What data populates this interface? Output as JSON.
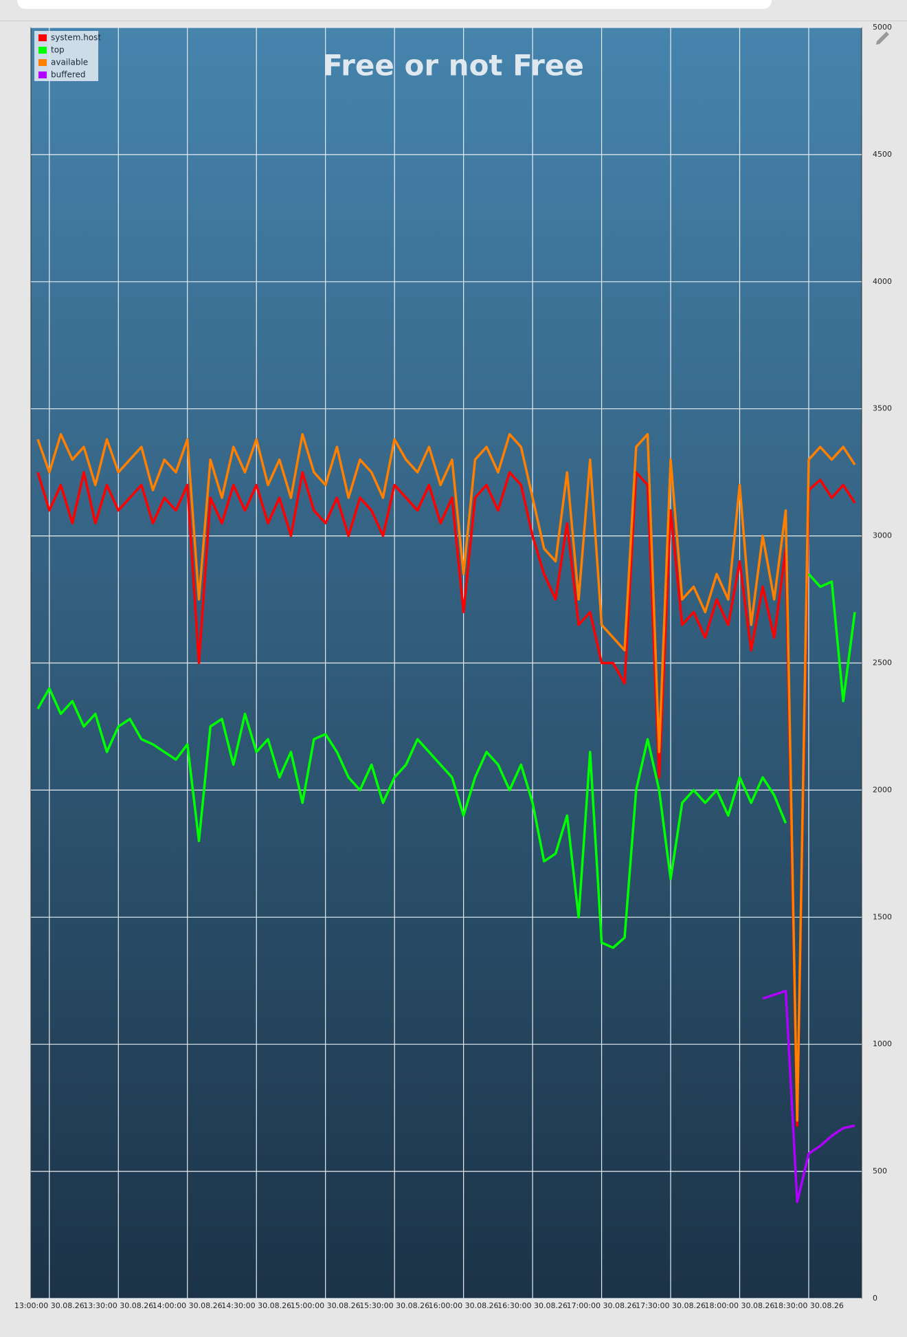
{
  "chart_data": {
    "type": "line",
    "title": "Free or not Free",
    "x": [
      775,
      780,
      785,
      790,
      795,
      800,
      805,
      810,
      815,
      820,
      825,
      830,
      835,
      840,
      845,
      850,
      855,
      860,
      865,
      870,
      875,
      880,
      885,
      890,
      895,
      900,
      905,
      910,
      915,
      920,
      925,
      930,
      935,
      940,
      945,
      950,
      955,
      960,
      965,
      970,
      975,
      980,
      985,
      990,
      995,
      1000,
      1005,
      1010,
      1015,
      1020,
      1025,
      1030,
      1035,
      1040,
      1045,
      1050,
      1055,
      1060,
      1065,
      1070,
      1075,
      1080,
      1085,
      1090,
      1095,
      1100,
      1105,
      1110,
      1115,
      1120,
      1125,
      1130
    ],
    "series": [
      {
        "name": "system.host",
        "color": "#ff0000",
        "values": [
          3250,
          3100,
          3200,
          3050,
          3250,
          3050,
          3200,
          3100,
          3150,
          3200,
          3050,
          3150,
          3100,
          3200,
          2500,
          3150,
          3050,
          3200,
          3100,
          3200,
          3050,
          3150,
          3000,
          3250,
          3100,
          3050,
          3150,
          3000,
          3150,
          3100,
          3000,
          3200,
          3150,
          3100,
          3200,
          3050,
          3150,
          2700,
          3150,
          3200,
          3100,
          3250,
          3200,
          3000,
          2850,
          2750,
          3050,
          2650,
          2700,
          2500,
          2500,
          2420,
          3250,
          3200,
          2050,
          3100,
          2650,
          2700,
          2600,
          2750,
          2650,
          2900,
          2550,
          2800,
          2600,
          2950,
          680,
          3180,
          3220,
          3150,
          3200,
          3130
        ]
      },
      {
        "name": "top",
        "color": "#00ff00",
        "values": [
          2320,
          2400,
          2300,
          2350,
          2250,
          2300,
          2150,
          2250,
          2280,
          2200,
          2180,
          2150,
          2120,
          2180,
          1800,
          2250,
          2280,
          2100,
          2300,
          2150,
          2200,
          2050,
          2150,
          1950,
          2200,
          2220,
          2150,
          2050,
          2000,
          2100,
          1950,
          2050,
          2100,
          2200,
          2150,
          2100,
          2050,
          1900,
          2050,
          2150,
          2100,
          2000,
          2100,
          1950,
          1720,
          1750,
          1900,
          1500,
          2150,
          1400,
          1380,
          1420,
          2000,
          2200,
          2000,
          1650,
          1950,
          2000,
          1950,
          2000,
          1900,
          2050,
          1950,
          2050,
          1980,
          1870,
          null,
          2850,
          2800,
          2820,
          2350,
          2700
        ]
      },
      {
        "name": "available",
        "color": "#ff8000",
        "values": [
          3380,
          3250,
          3400,
          3300,
          3350,
          3200,
          3380,
          3250,
          3300,
          3350,
          3180,
          3300,
          3250,
          3380,
          2750,
          3300,
          3150,
          3350,
          3250,
          3380,
          3200,
          3300,
          3150,
          3400,
          3250,
          3200,
          3350,
          3150,
          3300,
          3250,
          3150,
          3380,
          3300,
          3250,
          3350,
          3200,
          3300,
          2850,
          3300,
          3350,
          3250,
          3400,
          3350,
          3150,
          2950,
          2900,
          3250,
          2750,
          3300,
          2650,
          2600,
          2550,
          3350,
          3400,
          2150,
          3300,
          2750,
          2800,
          2700,
          2850,
          2750,
          3200,
          2650,
          3000,
          2750,
          3100,
          700,
          3300,
          3350,
          3300,
          3350,
          3280
        ]
      },
      {
        "name": "buffered",
        "color": "#b000ff",
        "values": [
          null,
          null,
          null,
          null,
          null,
          null,
          null,
          null,
          null,
          null,
          null,
          null,
          null,
          null,
          null,
          null,
          null,
          null,
          null,
          null,
          null,
          null,
          null,
          null,
          null,
          null,
          null,
          null,
          null,
          null,
          null,
          null,
          null,
          null,
          null,
          null,
          null,
          null,
          null,
          null,
          null,
          null,
          null,
          null,
          null,
          null,
          null,
          null,
          null,
          null,
          null,
          null,
          null,
          null,
          null,
          null,
          null,
          null,
          null,
          null,
          null,
          null,
          null,
          1180,
          1195,
          1210,
          380,
          570,
          600,
          640,
          670,
          680
        ]
      }
    ],
    "xlim": [
      772,
      1133
    ],
    "xticks": [
      {
        "value": 780,
        "label": "13:00:00 30.08.26"
      },
      {
        "value": 810,
        "label": "13:30:00 30.08.26"
      },
      {
        "value": 840,
        "label": "14:00:00 30.08.26"
      },
      {
        "value": 870,
        "label": "14:30:00 30.08.26"
      },
      {
        "value": 900,
        "label": "15:00:00 30.08.26"
      },
      {
        "value": 930,
        "label": "15:30:00 30.08.26"
      },
      {
        "value": 960,
        "label": "16:00:00 30.08.26"
      },
      {
        "value": 990,
        "label": "16:30:00 30.08.26"
      },
      {
        "value": 1020,
        "label": "17:00:00 30.08.26"
      },
      {
        "value": 1050,
        "label": "17:30:00 30.08.26"
      },
      {
        "value": 1080,
        "label": "18:00:00 30.08.26"
      },
      {
        "value": 1110,
        "label": "18:30:00 30.08.26"
      }
    ],
    "ylim": [
      0,
      5000
    ],
    "yticks": [
      0,
      500,
      1000,
      1500,
      2000,
      2500,
      3000,
      3500,
      4000,
      4500,
      5000
    ],
    "grid": true,
    "legend": "top-left"
  }
}
